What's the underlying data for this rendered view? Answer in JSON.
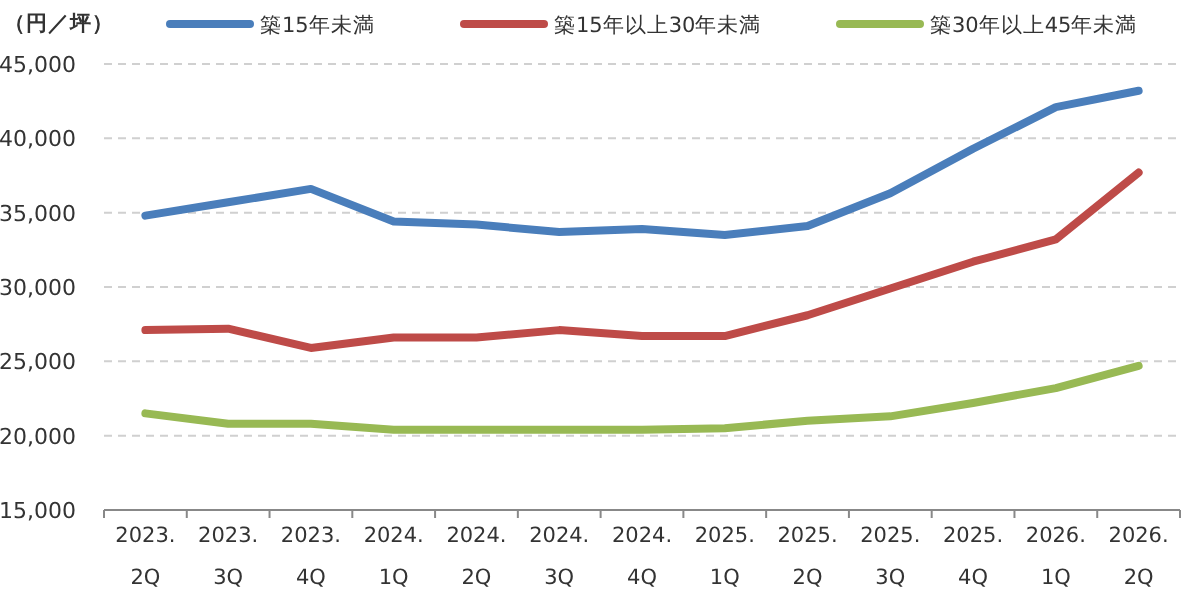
{
  "chart_data": {
    "type": "line",
    "ylabel": "（円／坪）",
    "categories": [
      "2023.\n2Q",
      "2023.\n3Q",
      "2023.\n4Q",
      "2024.\n1Q",
      "2024.\n2Q",
      "2024.\n3Q",
      "2024.\n4Q",
      "2025.\n1Q",
      "2025.\n2Q",
      "2025.\n3Q",
      "2025.\n4Q",
      "2026.\n1Q",
      "2026.\n2Q"
    ],
    "series": [
      {
        "name": "築15年未満",
        "color": "#4a7ebb",
        "values": [
          34800,
          35700,
          36600,
          34400,
          34200,
          33700,
          33900,
          33500,
          34100,
          36300,
          39300,
          42100,
          43200
        ]
      },
      {
        "name": "築15年以上30年未満",
        "color": "#be4b48",
        "values": [
          27100,
          27200,
          25900,
          26600,
          26600,
          27100,
          26700,
          26700,
          28100,
          29900,
          31700,
          33200,
          37700
        ]
      },
      {
        "name": "築30年以上45年未満",
        "color": "#98b954",
        "values": [
          21500,
          20800,
          20800,
          20400,
          20400,
          20400,
          20400,
          20500,
          21000,
          21300,
          22200,
          23200,
          24700
        ]
      }
    ],
    "ylim": [
      15000,
      45000
    ],
    "yticks": [
      {
        "value": 15000,
        "label": "15,000"
      },
      {
        "value": 20000,
        "label": "20,000"
      },
      {
        "value": 25000,
        "label": "25,000"
      },
      {
        "value": 30000,
        "label": "30,000"
      },
      {
        "value": 35000,
        "label": "35,000"
      },
      {
        "value": 40000,
        "label": "40,000"
      },
      {
        "value": 45000,
        "label": "45,000"
      }
    ],
    "grid": "y",
    "legend": "top",
    "marker": "none",
    "line_style": "solid"
  }
}
